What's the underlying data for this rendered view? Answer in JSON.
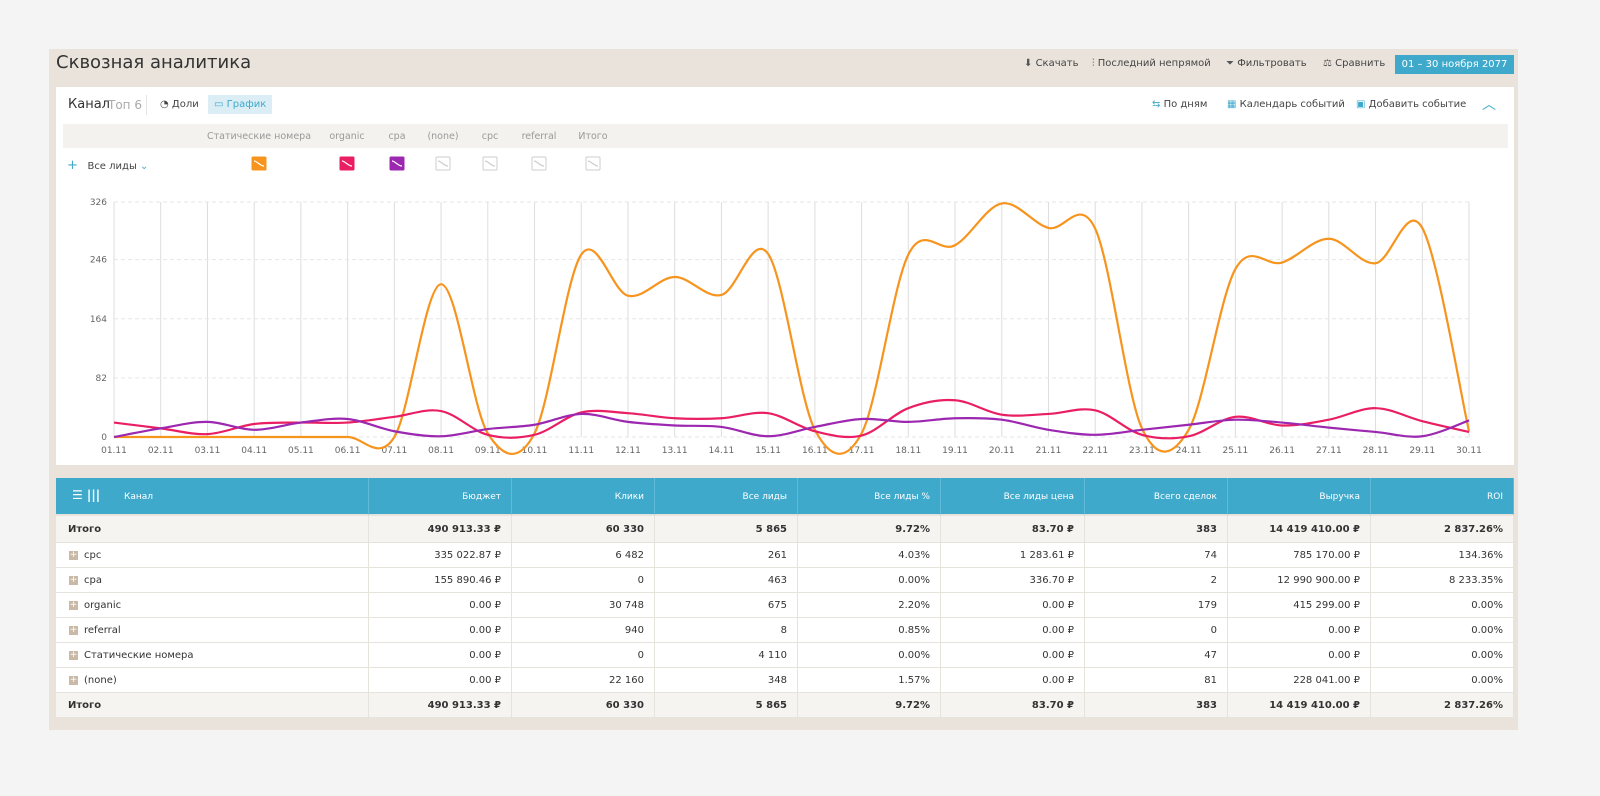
{
  "header": {
    "title": "Сквозная аналитика",
    "actions": [
      "Скачать",
      "Последний непрямой",
      "Фильтровать",
      "Сравнить"
    ],
    "period": "01 – 30 ноября 2077"
  },
  "toolbar": {
    "label": "Канал",
    "top": "Топ 6",
    "views": [
      "Доли",
      "График"
    ],
    "right": [
      "По дням",
      "Календарь событий",
      "Добавить событие"
    ],
    "metric": "Все лиды"
  },
  "chart_data": {
    "type": "line",
    "categories": [
      "01.11",
      "02.11",
      "03.11",
      "04.11",
      "05.11",
      "06.11",
      "07.11",
      "08.11",
      "09.11",
      "10.11",
      "11.11",
      "12.11",
      "13.11",
      "14.11",
      "15.11",
      "16.11",
      "17.11",
      "18.11",
      "19.11",
      "20.11",
      "21.11",
      "22.11",
      "23.11",
      "24.11",
      "25.11",
      "26.11",
      "27.11",
      "28.11",
      "29.11",
      "30.11"
    ],
    "series": [
      {
        "name": "Статические номера",
        "color": "#f7941d",
        "visible": true,
        "values": [
          0,
          0,
          0,
          0,
          0,
          0,
          0,
          212,
          5,
          5,
          253,
          196,
          222,
          197,
          254,
          10,
          5,
          253,
          266,
          324,
          290,
          289,
          12,
          10,
          233,
          242,
          275,
          241,
          290,
          8
        ]
      },
      {
        "name": "organic",
        "color": "#e91e63",
        "visible": true,
        "values": [
          20,
          12,
          4,
          18,
          20,
          20,
          28,
          36,
          3,
          3,
          34,
          33,
          26,
          26,
          33,
          8,
          2,
          40,
          51,
          31,
          32,
          37,
          3,
          1,
          28,
          16,
          24,
          40,
          22,
          7
        ]
      },
      {
        "name": "cpa",
        "color": "#9c27b0",
        "visible": true,
        "values": [
          0,
          12,
          21,
          10,
          20,
          25,
          8,
          1,
          11,
          17,
          32,
          21,
          16,
          14,
          1,
          14,
          25,
          21,
          26,
          24,
          10,
          3,
          10,
          17,
          24,
          20,
          13,
          7,
          1,
          23
        ]
      },
      {
        "name": "(none)",
        "color": "#cccccc",
        "visible": false
      },
      {
        "name": "cpc",
        "color": "#cccccc",
        "visible": false
      },
      {
        "name": "referral",
        "color": "#cccccc",
        "visible": false
      },
      {
        "name": "Итого",
        "color": "#cccccc",
        "visible": false
      }
    ],
    "ylim": [
      0,
      326
    ],
    "yticks": [
      0,
      82,
      164,
      246,
      326
    ],
    "grid": true
  },
  "table": {
    "columns": [
      "Канал",
      "Бюджет",
      "Клики",
      "Все лиды",
      "Все лиды %",
      "Все лиды цена",
      "Всего сделок",
      "Выручка",
      "ROI"
    ],
    "rows": [
      [
        "Итого",
        "490 913.33 ₽",
        "60 330",
        "5 865",
        "9.72%",
        "83.70 ₽",
        "383",
        "14 419 410.00 ₽",
        "2 837.26%"
      ],
      [
        "cpc",
        "335 022.87 ₽",
        "6 482",
        "261",
        "4.03%",
        "1 283.61 ₽",
        "74",
        "785 170.00 ₽",
        "134.36%"
      ],
      [
        "cpa",
        "155 890.46 ₽",
        "0",
        "463",
        "0.00%",
        "336.70 ₽",
        "2",
        "12 990 900.00 ₽",
        "8 233.35%"
      ],
      [
        "organic",
        "0.00 ₽",
        "30 748",
        "675",
        "2.20%",
        "0.00 ₽",
        "179",
        "415 299.00 ₽",
        "0.00%"
      ],
      [
        "referral",
        "0.00 ₽",
        "940",
        "8",
        "0.85%",
        "0.00 ₽",
        "0",
        "0.00 ₽",
        "0.00%"
      ],
      [
        "Статические номера",
        "0.00 ₽",
        "0",
        "4 110",
        "0.00%",
        "0.00 ₽",
        "47",
        "0.00 ₽",
        "0.00%"
      ],
      [
        "(none)",
        "0.00 ₽",
        "22 160",
        "348",
        "1.57%",
        "0.00 ₽",
        "81",
        "228 041.00 ₽",
        "0.00%"
      ],
      [
        "Итого",
        "490 913.33 ₽",
        "60 330",
        "5 865",
        "9.72%",
        "83.70 ₽",
        "383",
        "14 419 410.00 ₽",
        "2 837.26%"
      ]
    ]
  }
}
